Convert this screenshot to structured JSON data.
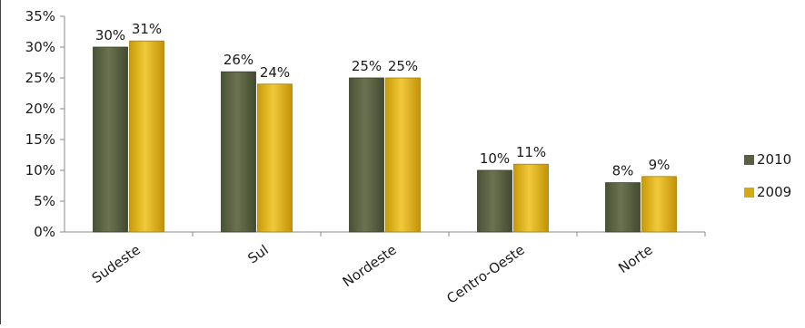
{
  "chart_data": {
    "type": "bar",
    "categories": [
      "Sudeste",
      "Sul",
      "Nordeste",
      "Centro-Oeste",
      "Norte"
    ],
    "series": [
      {
        "name": "2010",
        "values": [
          30,
          26,
          25,
          10,
          8
        ],
        "labels": [
          "30%",
          "26%",
          "25%",
          "10%",
          "8%"
        ],
        "color": "#5a6142"
      },
      {
        "name": "2009",
        "values": [
          31,
          24,
          25,
          11,
          9
        ],
        "labels": [
          "31%",
          "24%",
          "25%",
          "11%",
          "9%"
        ],
        "color": "#d4aa0f"
      }
    ],
    "yticks": [
      "0%",
      "5%",
      "10%",
      "15%",
      "20%",
      "25%",
      "30%",
      "35%"
    ],
    "ylim": [
      0,
      35
    ],
    "grid": false,
    "legend_position": "right"
  }
}
